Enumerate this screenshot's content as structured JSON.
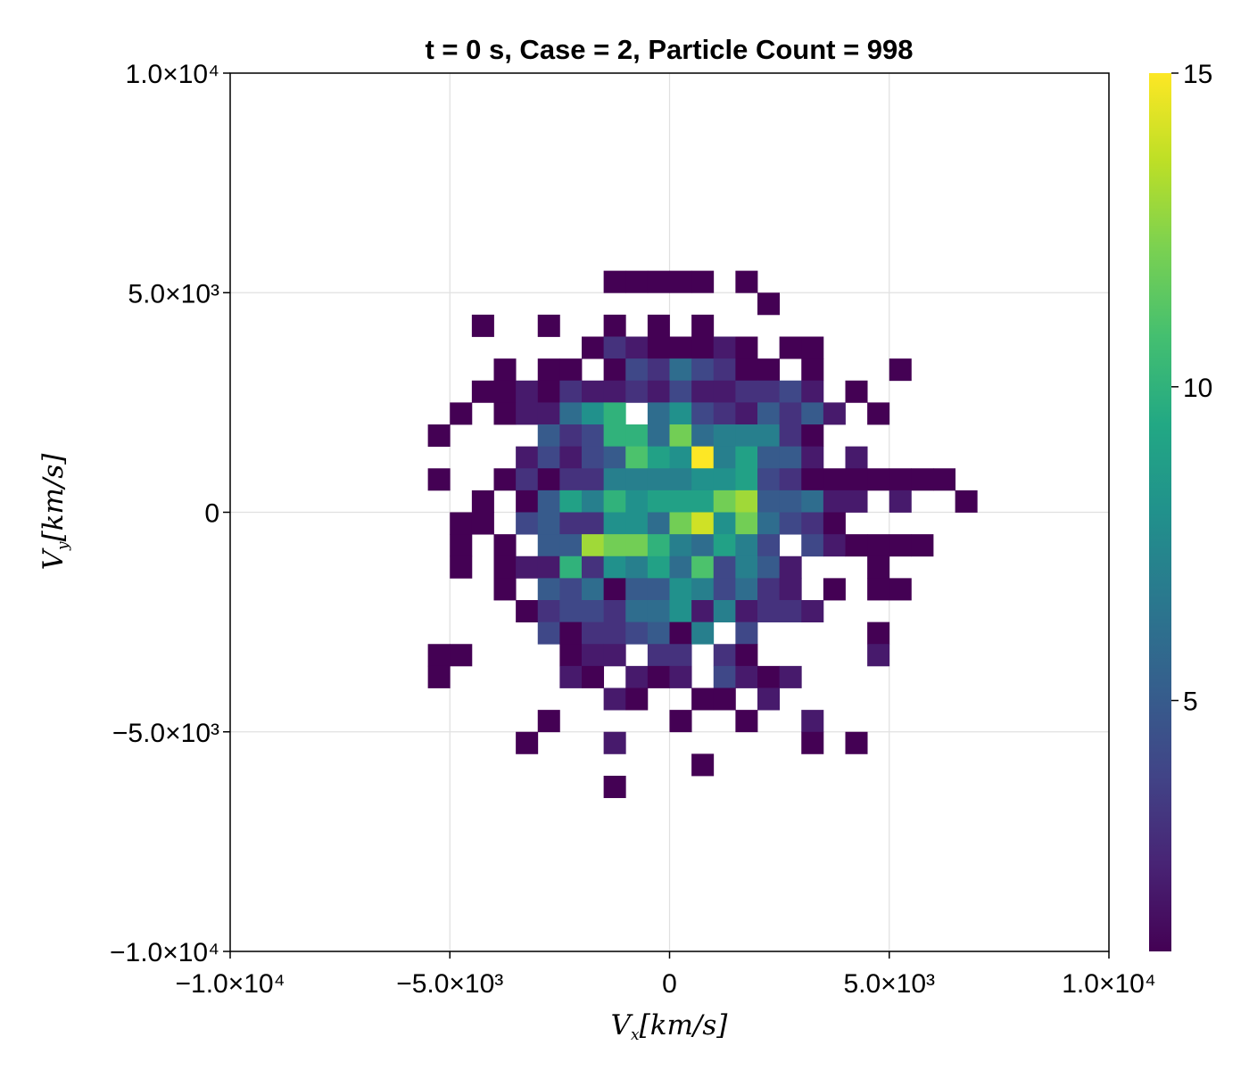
{
  "chart_data": {
    "type": "heatmap",
    "title": "t = 0 s, Case = 2, Particle Count = 998",
    "xlabel": "V_x[km/s]",
    "ylabel": "V_y[km/s]",
    "xlabel_parts": {
      "base": "V",
      "sub": "x",
      "rest": "[km/s]"
    },
    "ylabel_parts": {
      "base": "V",
      "sub": "y",
      "rest": "[km/s]"
    },
    "xlim": [
      -10000,
      10000
    ],
    "ylim": [
      -10000,
      10000
    ],
    "x_ticks": [
      -10000,
      -5000,
      0,
      5000,
      10000
    ],
    "x_tick_labels": [
      "−1.0×10⁴",
      "−5.0×10³",
      "0",
      "5.0×10³",
      "1.0×10⁴"
    ],
    "y_ticks": [
      -10000,
      -5000,
      0,
      5000,
      10000
    ],
    "y_tick_labels": [
      "−1.0×10⁴",
      "−5.0×10³",
      "0",
      "5.0×10³",
      "1.0×10⁴"
    ],
    "grid": true,
    "colormap": "viridis",
    "colorbar": {
      "range": [
        1,
        15
      ],
      "ticks": [
        5,
        10,
        15
      ],
      "tick_labels": [
        "5",
        "10",
        "15"
      ]
    },
    "bin_width": 500,
    "row_start_y": 5000,
    "row_start_x": -5500,
    "rows": [
      "...........1112.1..............",
      "..............1................",
      "..1..1..1.1.1..................",
      ".........1..2211121.11.........",
      "...1.21.13316211..1......2.....",
      "..111.2323326222338331.1.......",
      ".1.1.226892.69543364112.1......",
      "1.....42..2998311882822......",
      ".....1.3213264127187..331.2......",
      "1...1.2123661....1.111111.1112.",
      "...1.1.3165696810976543213..2..1",
      "..111.34433990120124321....",
      "..1.1.556121212158966472.3.2.111",
      "..1.122.103122961227663..1.....",
      "....1.6413..1..56658643.......1",
      ".....236531155856665422.11.",
      "...................."
    ],
    "cells": [
      [
        -1500,
        5000,
        1
      ],
      [
        -1000,
        5000,
        1
      ],
      [
        -500,
        5000,
        1
      ],
      [
        0,
        5000,
        1
      ],
      [
        500,
        5000,
        1
      ],
      [
        1500,
        5000,
        1
      ],
      [
        2000,
        4500,
        1
      ],
      [
        -4500,
        4000,
        1
      ],
      [
        -3000,
        4000,
        1
      ],
      [
        -1500,
        4000,
        1
      ],
      [
        -500,
        4000,
        1
      ],
      [
        500,
        4000,
        1
      ],
      [
        -2000,
        3500,
        1
      ],
      [
        -1500,
        3500,
        3
      ],
      [
        -1000,
        3500,
        2
      ],
      [
        -500,
        3500,
        1
      ],
      [
        0,
        3500,
        1
      ],
      [
        500,
        3500,
        1
      ],
      [
        1000,
        3500,
        2
      ],
      [
        1500,
        3500,
        1
      ],
      [
        2500,
        3500,
        1
      ],
      [
        3000,
        3500,
        1
      ],
      [
        -4000,
        3000,
        1
      ],
      [
        -3000,
        3000,
        1
      ],
      [
        -2500,
        3000,
        1
      ],
      [
        -1500,
        3000,
        1
      ],
      [
        -1000,
        3000,
        4
      ],
      [
        -500,
        3000,
        3
      ],
      [
        0,
        3000,
        6
      ],
      [
        500,
        3000,
        4
      ],
      [
        1000,
        3000,
        3
      ],
      [
        1500,
        3000,
        1
      ],
      [
        2000,
        3000,
        1
      ],
      [
        3000,
        3000,
        1
      ],
      [
        5000,
        3000,
        1
      ],
      [
        -4500,
        2500,
        1
      ],
      [
        -4000,
        2500,
        1
      ],
      [
        -3500,
        2500,
        2
      ],
      [
        -3000,
        2500,
        1
      ],
      [
        -2500,
        2500,
        3
      ],
      [
        -2000,
        2500,
        2
      ],
      [
        -1500,
        2500,
        2
      ],
      [
        -1000,
        2500,
        3
      ],
      [
        -500,
        2500,
        2
      ],
      [
        0,
        2500,
        4
      ],
      [
        500,
        2500,
        2
      ],
      [
        1000,
        2500,
        2
      ],
      [
        1500,
        2500,
        3
      ],
      [
        2000,
        2500,
        3
      ],
      [
        2500,
        2500,
        4
      ],
      [
        3000,
        2500,
        2
      ],
      [
        4000,
        2500,
        1
      ],
      [
        -5000,
        2000,
        1
      ],
      [
        -4000,
        2000,
        1
      ],
      [
        -3500,
        2000,
        2
      ],
      [
        -3000,
        2000,
        2
      ],
      [
        -2500,
        2000,
        6
      ],
      [
        -2000,
        2000,
        8
      ],
      [
        -1500,
        2000,
        10
      ],
      [
        -500,
        2000,
        6
      ],
      [
        0,
        2000,
        8
      ],
      [
        500,
        2000,
        4
      ],
      [
        1000,
        2000,
        3
      ],
      [
        1500,
        2000,
        2
      ],
      [
        2000,
        2000,
        5
      ],
      [
        2500,
        2000,
        3
      ],
      [
        3000,
        2000,
        5
      ],
      [
        3500,
        2000,
        2
      ],
      [
        4500,
        2000,
        1
      ],
      [
        -5500,
        1500,
        1
      ],
      [
        -3000,
        1500,
        5
      ],
      [
        -2500,
        1500,
        3
      ],
      [
        -2000,
        1500,
        4
      ],
      [
        -1500,
        1500,
        10
      ],
      [
        -1000,
        1500,
        10
      ],
      [
        -500,
        1500,
        6
      ],
      [
        0,
        1500,
        12
      ],
      [
        500,
        1500,
        6
      ],
      [
        1000,
        1500,
        7
      ],
      [
        1500,
        1500,
        7
      ],
      [
        2000,
        1500,
        7
      ],
      [
        2500,
        1500,
        3
      ],
      [
        3000,
        1500,
        1
      ],
      [
        -3500,
        1000,
        2
      ],
      [
        -3000,
        1000,
        4
      ],
      [
        -2500,
        1000,
        2
      ],
      [
        -2000,
        1000,
        4
      ],
      [
        -1500,
        1000,
        5
      ],
      [
        -1000,
        1000,
        11
      ],
      [
        -500,
        1000,
        9
      ],
      [
        0,
        1000,
        8
      ],
      [
        500,
        1000,
        15
      ],
      [
        1000,
        1000,
        7
      ],
      [
        1500,
        1000,
        9
      ],
      [
        2000,
        1000,
        5
      ],
      [
        2500,
        1000,
        5
      ],
      [
        3000,
        1000,
        2
      ],
      [
        4000,
        1000,
        2
      ],
      [
        -5500,
        500,
        1
      ],
      [
        -4000,
        500,
        1
      ],
      [
        -3500,
        500,
        3
      ],
      [
        -3000,
        500,
        1
      ],
      [
        -2500,
        500,
        3
      ],
      [
        -2000,
        500,
        3
      ],
      [
        -1500,
        500,
        7
      ],
      [
        -1000,
        500,
        7
      ],
      [
        -500,
        500,
        7
      ],
      [
        0,
        500,
        7
      ],
      [
        500,
        500,
        8
      ],
      [
        1000,
        500,
        8
      ],
      [
        1500,
        500,
        9
      ],
      [
        2000,
        500,
        4
      ],
      [
        2500,
        500,
        3
      ],
      [
        3000,
        500,
        1
      ],
      [
        3500,
        500,
        1
      ],
      [
        4000,
        500,
        1
      ],
      [
        4500,
        500,
        1
      ],
      [
        5000,
        500,
        1
      ],
      [
        5500,
        500,
        1
      ],
      [
        6000,
        500,
        1
      ],
      [
        -4500,
        0,
        1
      ],
      [
        -3500,
        0,
        1
      ],
      [
        -3000,
        0,
        5
      ],
      [
        -2500,
        0,
        9
      ],
      [
        -2000,
        0,
        7
      ],
      [
        -1500,
        0,
        10
      ],
      [
        -1000,
        0,
        8
      ],
      [
        -500,
        0,
        9
      ],
      [
        0,
        0,
        9
      ],
      [
        500,
        0,
        9
      ],
      [
        1000,
        0,
        12
      ],
      [
        1500,
        0,
        13
      ],
      [
        2000,
        0,
        5
      ],
      [
        2500,
        0,
        5
      ],
      [
        3000,
        0,
        6
      ],
      [
        3500,
        0,
        2
      ],
      [
        4000,
        0,
        2
      ],
      [
        5000,
        0,
        2
      ],
      [
        6500,
        0,
        1
      ],
      [
        -5000,
        -500,
        1
      ],
      [
        -4500,
        -500,
        1
      ],
      [
        -3500,
        -500,
        4
      ],
      [
        -3000,
        -500,
        5
      ],
      [
        -2500,
        -500,
        3
      ],
      [
        -2000,
        -500,
        3
      ],
      [
        -1500,
        -500,
        8
      ],
      [
        -1000,
        -500,
        8
      ],
      [
        -500,
        -500,
        6
      ],
      [
        0,
        -500,
        12
      ],
      [
        500,
        -500,
        14
      ],
      [
        1000,
        -500,
        8
      ],
      [
        1500,
        -500,
        12
      ],
      [
        2000,
        -500,
        6
      ],
      [
        2500,
        -500,
        4
      ],
      [
        3000,
        -500,
        3
      ],
      [
        3500,
        -500,
        1
      ],
      [
        -5000,
        -1000,
        1
      ],
      [
        -4000,
        -1000,
        1
      ],
      [
        -3000,
        -1000,
        5
      ],
      [
        -2500,
        -1000,
        5
      ],
      [
        -2000,
        -1000,
        13
      ],
      [
        -1500,
        -1000,
        12
      ],
      [
        -1000,
        -1000,
        12
      ],
      [
        -500,
        -1000,
        10
      ],
      [
        0,
        -1000,
        7
      ],
      [
        500,
        -1000,
        6
      ],
      [
        1000,
        -1000,
        9
      ],
      [
        1500,
        -1000,
        7
      ],
      [
        2000,
        -1000,
        4
      ],
      [
        3000,
        -1000,
        4
      ],
      [
        3500,
        -1000,
        2
      ],
      [
        4000,
        -1000,
        1
      ],
      [
        4500,
        -1000,
        1
      ],
      [
        5000,
        -1000,
        1
      ],
      [
        5500,
        -1000,
        1
      ],
      [
        -5000,
        -1500,
        1
      ],
      [
        -4000,
        -1500,
        1
      ],
      [
        -3500,
        -1500,
        2
      ],
      [
        -3000,
        -1500,
        2
      ],
      [
        -2500,
        -1500,
        10
      ],
      [
        -2000,
        -1500,
        3
      ],
      [
        -1500,
        -1500,
        8
      ],
      [
        -1000,
        -1500,
        7
      ],
      [
        -500,
        -1500,
        9
      ],
      [
        0,
        -1500,
        6
      ],
      [
        500,
        -1500,
        11
      ],
      [
        1000,
        -1500,
        4
      ],
      [
        1500,
        -1500,
        7
      ],
      [
        2000,
        -1500,
        5
      ],
      [
        2500,
        -1500,
        2
      ],
      [
        4500,
        -1500,
        1
      ],
      [
        -4000,
        -2000,
        1
      ],
      [
        -3000,
        -2000,
        5
      ],
      [
        -2500,
        -2000,
        4
      ],
      [
        -2000,
        -2000,
        6
      ],
      [
        -1500,
        -2000,
        1
      ],
      [
        -1000,
        -2000,
        5
      ],
      [
        -500,
        -2000,
        5
      ],
      [
        0,
        -2000,
        8
      ],
      [
        500,
        -2000,
        7
      ],
      [
        1000,
        -2000,
        4
      ],
      [
        1500,
        -2000,
        6
      ],
      [
        2000,
        -2000,
        3
      ],
      [
        2500,
        -2000,
        2
      ],
      [
        3500,
        -2000,
        1
      ],
      [
        4500,
        -2000,
        1
      ],
      [
        5000,
        -2000,
        1
      ],
      [
        -3500,
        -2500,
        1
      ],
      [
        -3000,
        -2500,
        3
      ],
      [
        -2500,
        -2500,
        4
      ],
      [
        -2000,
        -2500,
        4
      ],
      [
        -1500,
        -2500,
        3
      ],
      [
        -1000,
        -2500,
        6
      ],
      [
        -500,
        -2500,
        6
      ],
      [
        0,
        -2500,
        8
      ],
      [
        500,
        -2500,
        2
      ],
      [
        1000,
        -2500,
        7
      ],
      [
        1500,
        -2500,
        2
      ],
      [
        2000,
        -2500,
        3
      ],
      [
        2500,
        -2500,
        3
      ],
      [
        3000,
        -2500,
        2
      ],
      [
        -3000,
        -3000,
        4
      ],
      [
        -2500,
        -3000,
        1
      ],
      [
        -2000,
        -3000,
        3
      ],
      [
        -1500,
        -3000,
        3
      ],
      [
        -1000,
        -3000,
        4
      ],
      [
        -500,
        -3000,
        5
      ],
      [
        0,
        -3000,
        1
      ],
      [
        500,
        -3000,
        7
      ],
      [
        1500,
        -3000,
        4
      ],
      [
        4500,
        -3000,
        1
      ],
      [
        -5500,
        -3500,
        1
      ],
      [
        -5000,
        -3500,
        1
      ],
      [
        -2500,
        -3500,
        1
      ],
      [
        -2000,
        -3500,
        2
      ],
      [
        -1500,
        -3500,
        2
      ],
      [
        -500,
        -3500,
        3
      ],
      [
        0,
        -3500,
        3
      ],
      [
        1000,
        -3500,
        3
      ],
      [
        1500,
        -3500,
        1
      ],
      [
        4500,
        -3500,
        2
      ],
      [
        -5500,
        -4000,
        1
      ],
      [
        -2500,
        -4000,
        2
      ],
      [
        -2000,
        -4000,
        1
      ],
      [
        -1000,
        -4000,
        2
      ],
      [
        -500,
        -4000,
        1
      ],
      [
        0,
        -4000,
        2
      ],
      [
        1000,
        -4000,
        4
      ],
      [
        1500,
        -4000,
        2
      ],
      [
        2000,
        -4000,
        1
      ],
      [
        2500,
        -4000,
        2
      ],
      [
        -1500,
        -4500,
        2
      ],
      [
        -1000,
        -4500,
        1
      ],
      [
        500,
        -4500,
        1
      ],
      [
        1000,
        -4500,
        1
      ],
      [
        2000,
        -4500,
        2
      ],
      [
        -3000,
        -5000,
        1
      ],
      [
        0,
        -5000,
        1
      ],
      [
        1500,
        -5000,
        1
      ],
      [
        3000,
        -5000,
        2
      ],
      [
        -3500,
        -5500,
        1
      ],
      [
        -1500,
        -5500,
        2
      ],
      [
        3000,
        -5500,
        1
      ],
      [
        4000,
        -5500,
        1
      ],
      [
        500,
        -6000,
        1
      ],
      [
        -1500,
        -6500,
        1
      ]
    ]
  }
}
